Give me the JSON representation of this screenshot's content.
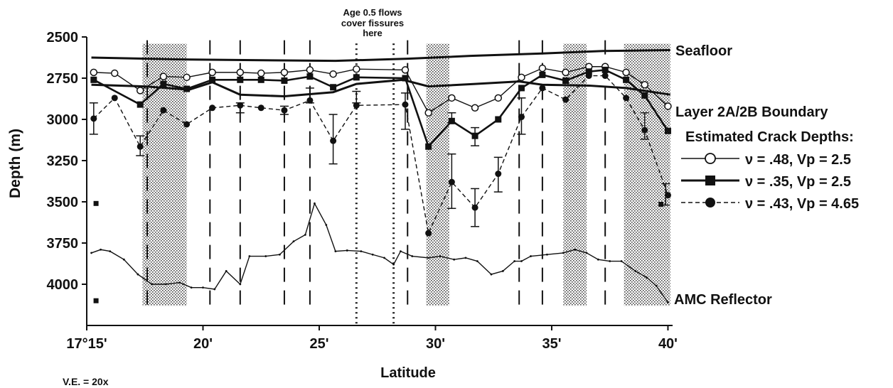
{
  "chart_data": {
    "type": "line",
    "xlabel": "Latitude",
    "ylabel": "Depth (m)",
    "ylim": [
      2500,
      4250
    ],
    "xlim": [
      15,
      40.2
    ],
    "x_ticks": [
      {
        "v": 15,
        "label": "17°15'"
      },
      {
        "v": 20,
        "label": "20'"
      },
      {
        "v": 25,
        "label": "25'"
      },
      {
        "v": 30,
        "label": "30'"
      },
      {
        "v": 35,
        "label": "35'"
      },
      {
        "v": 40,
        "label": "40'"
      }
    ],
    "y_ticks": [
      2500,
      2750,
      3000,
      3250,
      3500,
      3750,
      4000
    ],
    "ve_text": "V.E. = 20x",
    "annotation_top": [
      "Age 0.5 flows",
      "cover fissures",
      "here"
    ],
    "legend_title": "Estimated Crack Depths:",
    "legend": [
      {
        "text": "ν = .48, Vp = 2.5",
        "marker": "open-circle",
        "line": "solid"
      },
      {
        "text": "ν = .35, Vp = 2.5",
        "marker": "filled-square",
        "line": "solid-thick"
      },
      {
        "text": "ν = .43, Vp = 4.65",
        "marker": "filled-circle",
        "line": "dashed"
      }
    ],
    "shaded_bands": [
      [
        17.4,
        19.3
      ],
      [
        29.6,
        30.6
      ],
      [
        35.5,
        36.5
      ],
      [
        38.1,
        40.1
      ]
    ],
    "dashed_lines": [
      17.6,
      20.3,
      21.6,
      23.5,
      24.6,
      28.8,
      33.6,
      34.6,
      37.3
    ],
    "dotted_lines": [
      26.6,
      28.2
    ],
    "series": [
      {
        "name": "Seafloor",
        "style": "thick",
        "x": [
          15.2,
          19.4,
          25.7,
          28.8,
          31.5,
          34.6,
          37.2,
          40.1
        ],
        "y": [
          2625,
          2637,
          2645,
          2632,
          2615,
          2600,
          2585,
          2580
        ]
      },
      {
        "name": "Layer 2A/2B Boundary",
        "style": "thick",
        "x": [
          15.2,
          17.5,
          19.4,
          20.4,
          21.6,
          23.5,
          25.6,
          26.6,
          28.6,
          29.7,
          31.7,
          33.6,
          34.6,
          36.6,
          38.2,
          40.1
        ],
        "y": [
          2790,
          2800,
          2820,
          2775,
          2850,
          2860,
          2835,
          2785,
          2760,
          2800,
          2785,
          2770,
          2790,
          2795,
          2810,
          2850
        ]
      },
      {
        "name": "ν = .48, Vp = 2.5",
        "style": "open-circle",
        "x": [
          15.3,
          16.2,
          17.3,
          18.3,
          19.3,
          20.4,
          21.6,
          22.5,
          23.5,
          24.6,
          25.6,
          26.6,
          28.7,
          29.7,
          30.7,
          31.7,
          32.7,
          33.7,
          34.6,
          35.6,
          36.6,
          37.3,
          38.2,
          39.0,
          40.0
        ],
        "y": [
          2715,
          2720,
          2825,
          2740,
          2745,
          2715,
          2715,
          2720,
          2715,
          2700,
          2725,
          2695,
          2700,
          2960,
          2870,
          2930,
          2870,
          2745,
          2690,
          2715,
          2680,
          2680,
          2715,
          2790,
          2920
        ]
      },
      {
        "name": "ν = .35, Vp = 2.5",
        "style": "filled-square",
        "x": [
          15.3,
          17.3,
          18.3,
          19.3,
          20.4,
          21.6,
          22.5,
          23.5,
          24.6,
          25.6,
          26.6,
          28.7,
          29.7,
          30.7,
          31.7,
          32.7,
          33.7,
          34.6,
          35.6,
          36.6,
          37.3,
          38.2,
          39.0,
          40.0
        ],
        "y": [
          2760,
          2910,
          2785,
          2815,
          2760,
          2760,
          2760,
          2765,
          2740,
          2805,
          2745,
          2750,
          3165,
          3010,
          3100,
          3000,
          2810,
          2730,
          2765,
          2710,
          2700,
          2760,
          2855,
          3070
        ]
      },
      {
        "name": "ν = .43, Vp = 4.65",
        "style": "filled-circle",
        "x": [
          15.3,
          16.2,
          17.3,
          18.3,
          19.3,
          20.4,
          21.6,
          22.5,
          23.5,
          24.6,
          25.6,
          26.6,
          28.7,
          29.7,
          30.7,
          31.7,
          32.7,
          33.7,
          34.6,
          35.6,
          36.6,
          37.3,
          38.2,
          39.0,
          40.0
        ],
        "y": [
          2995,
          2870,
          3165,
          2945,
          3030,
          2930,
          2915,
          2930,
          2945,
          2885,
          3130,
          2915,
          2910,
          3690,
          3380,
          3535,
          3330,
          2985,
          2810,
          2880,
          2735,
          2735,
          2870,
          3065,
          3460
        ]
      },
      {
        "name": "AMC Reflector",
        "style": "thin",
        "x": [
          15.2,
          15.6,
          16.0,
          16.6,
          17.2,
          17.8,
          18.4,
          19.0,
          19.5,
          20.0,
          20.5,
          21.0,
          21.6,
          22.0,
          22.7,
          23.3,
          23.9,
          24.4,
          24.8,
          25.3,
          25.7,
          26.2,
          26.8,
          27.3,
          27.8,
          28.2,
          28.5,
          29.0,
          29.7,
          30.2,
          30.8,
          31.3,
          31.8,
          32.4,
          32.9,
          33.4,
          33.7,
          34.1,
          34.8,
          35.5,
          36.0,
          36.5,
          37.0,
          37.5,
          38.0,
          38.6,
          39.1,
          39.5,
          40.0
        ],
        "y": [
          3810,
          3790,
          3800,
          3850,
          3940,
          4000,
          4000,
          3990,
          4020,
          4020,
          4030,
          3920,
          4000,
          3830,
          3830,
          3820,
          3740,
          3700,
          3510,
          3640,
          3800,
          3795,
          3800,
          3820,
          3840,
          3880,
          3800,
          3830,
          3840,
          3830,
          3850,
          3840,
          3860,
          3940,
          3920,
          3860,
          3860,
          3830,
          3820,
          3810,
          3790,
          3810,
          3850,
          3860,
          3860,
          3920,
          3960,
          4010,
          4110
        ]
      }
    ],
    "error_bars": [
      {
        "x": 15.3,
        "lo": 2900,
        "hi": 3090
      },
      {
        "x": 17.3,
        "lo": 3100,
        "hi": 3220
      },
      {
        "x": 21.6,
        "lo": 2900,
        "hi": 2960
      },
      {
        "x": 23.5,
        "lo": 2920,
        "hi": 2970
      },
      {
        "x": 24.6,
        "lo": 2810,
        "hi": 2900
      },
      {
        "x": 25.6,
        "lo": 2970,
        "hi": 3270
      },
      {
        "x": 26.6,
        "lo": 2830,
        "hi": 2900
      },
      {
        "x": 28.7,
        "lo": 2840,
        "hi": 3060
      },
      {
        "x": 30.7,
        "lo": 3210,
        "hi": 3540
      },
      {
        "x": 30.7,
        "lo": 2960,
        "hi": 3020
      },
      {
        "x": 31.7,
        "lo": 3420,
        "hi": 3650
      },
      {
        "x": 31.7,
        "lo": 3050,
        "hi": 3160
      },
      {
        "x": 32.7,
        "lo": 3230,
        "hi": 3440
      },
      {
        "x": 33.7,
        "lo": 2870,
        "hi": 3090
      },
      {
        "x": 39.0,
        "lo": 2960,
        "hi": 3120
      },
      {
        "x": 39.9,
        "lo": 3390,
        "hi": 3520
      }
    ],
    "stray_squares": [
      {
        "x": 15.4,
        "y": 3510
      },
      {
        "x": 15.4,
        "y": 4100
      },
      {
        "x": 39.7,
        "y": 3515
      }
    ],
    "labels": {
      "seafloor": "Seafloor",
      "boundary": "Layer 2A/2B Boundary",
      "amc": "AMC Reflector"
    }
  },
  "colors": {
    "ink": "#111111",
    "shade": "#d8d8d8"
  }
}
